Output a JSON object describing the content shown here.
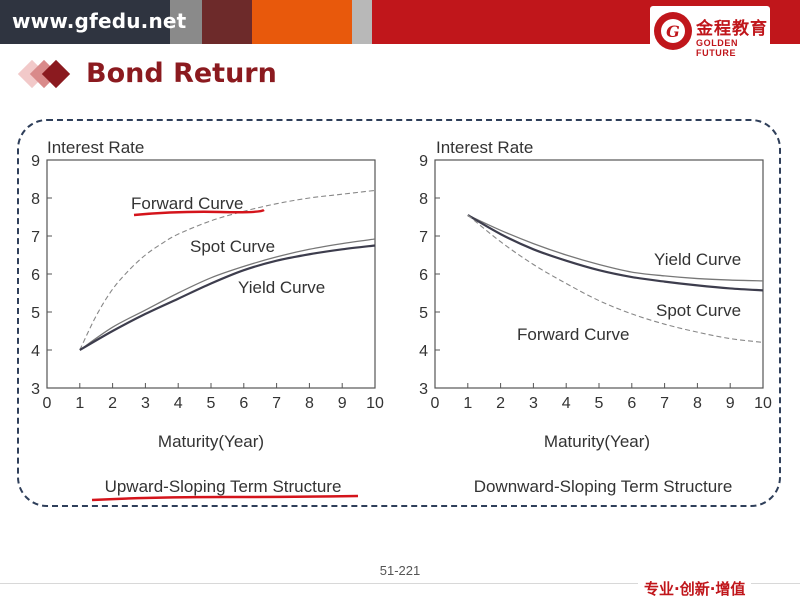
{
  "header": {
    "site": "www.gfedu.net",
    "logo_cn": "金程教育",
    "logo_en": "GOLDEN FUTURE",
    "logo_letter": "G",
    "bar_colors": [
      "#2f3440",
      "#8a8a8a",
      "#6d2a2a",
      "#8b1a1f",
      "#e8590c",
      "#b8b8b8",
      "#c0161b"
    ]
  },
  "title": "Bond Return",
  "page_number": "51-221",
  "slogan": "专业·创新·增值",
  "chart_data": [
    {
      "type": "line",
      "ylabel": "Interest Rate",
      "xlabel": "Maturity(Year)",
      "caption": "Upward-Sloping Term Structure",
      "xlim": [
        0,
        10
      ],
      "ylim": [
        3,
        9
      ],
      "xticks": [
        0,
        1,
        2,
        3,
        4,
        5,
        6,
        7,
        8,
        9,
        10
      ],
      "yticks": [
        3,
        4,
        5,
        6,
        7,
        8,
        9
      ],
      "grid": false,
      "series": [
        {
          "name": "Forward Curve",
          "style": "dashed",
          "color": "#888888",
          "x": [
            1,
            1.5,
            2,
            2.5,
            3,
            3.5,
            4,
            5,
            6,
            7,
            8,
            9,
            10
          ],
          "y": [
            4.0,
            4.9,
            5.6,
            6.1,
            6.5,
            6.8,
            7.05,
            7.4,
            7.65,
            7.85,
            8.0,
            8.1,
            8.2
          ]
        },
        {
          "name": "Spot Curve",
          "style": "solid-thin",
          "color": "#777777",
          "x": [
            1,
            2,
            3,
            4,
            5,
            6,
            7,
            8,
            9,
            10
          ],
          "y": [
            4.0,
            4.6,
            5.05,
            5.5,
            5.9,
            6.2,
            6.45,
            6.65,
            6.8,
            6.92
          ]
        },
        {
          "name": "Yield Curve",
          "style": "solid-thick",
          "color": "#3d3d4d",
          "x": [
            1,
            2,
            3,
            4,
            5,
            6,
            7,
            8,
            9,
            10
          ],
          "y": [
            4.0,
            4.5,
            4.95,
            5.35,
            5.75,
            6.1,
            6.35,
            6.52,
            6.65,
            6.75
          ]
        }
      ],
      "annotations": [
        "Forward Curve",
        "Spot Curve",
        "Yield Curve"
      ],
      "highlighted": [
        "Forward Curve",
        "caption"
      ]
    },
    {
      "type": "line",
      "ylabel": "Interest Rate",
      "xlabel": "Maturity(Year)",
      "caption": "Downward-Sloping Term Structure",
      "xlim": [
        0,
        10
      ],
      "ylim": [
        3,
        9
      ],
      "xticks": [
        0,
        1,
        2,
        3,
        4,
        5,
        6,
        7,
        8,
        9,
        10
      ],
      "yticks": [
        3,
        4,
        5,
        6,
        7,
        8,
        9
      ],
      "grid": false,
      "series": [
        {
          "name": "Yield Curve",
          "style": "solid-thin",
          "color": "#777777",
          "x": [
            1,
            2,
            3,
            4,
            5,
            6,
            7,
            8,
            9,
            10
          ],
          "y": [
            7.55,
            7.15,
            6.8,
            6.5,
            6.25,
            6.05,
            5.95,
            5.88,
            5.84,
            5.82
          ]
        },
        {
          "name": "Spot Curve",
          "style": "solid-thick",
          "color": "#3d3d4d",
          "x": [
            1,
            2,
            3,
            4,
            5,
            6,
            7,
            8,
            9,
            10
          ],
          "y": [
            7.55,
            7.05,
            6.65,
            6.35,
            6.1,
            5.92,
            5.8,
            5.7,
            5.62,
            5.57
          ]
        },
        {
          "name": "Forward Curve",
          "style": "dashed",
          "color": "#888888",
          "x": [
            1,
            2,
            3,
            4,
            5,
            6,
            7,
            8,
            9,
            10
          ],
          "y": [
            7.55,
            6.85,
            6.25,
            5.75,
            5.3,
            4.95,
            4.68,
            4.47,
            4.3,
            4.2
          ]
        }
      ],
      "annotations": [
        "Yield Curve",
        "Spot Curve",
        "Forward Curve"
      ]
    }
  ]
}
